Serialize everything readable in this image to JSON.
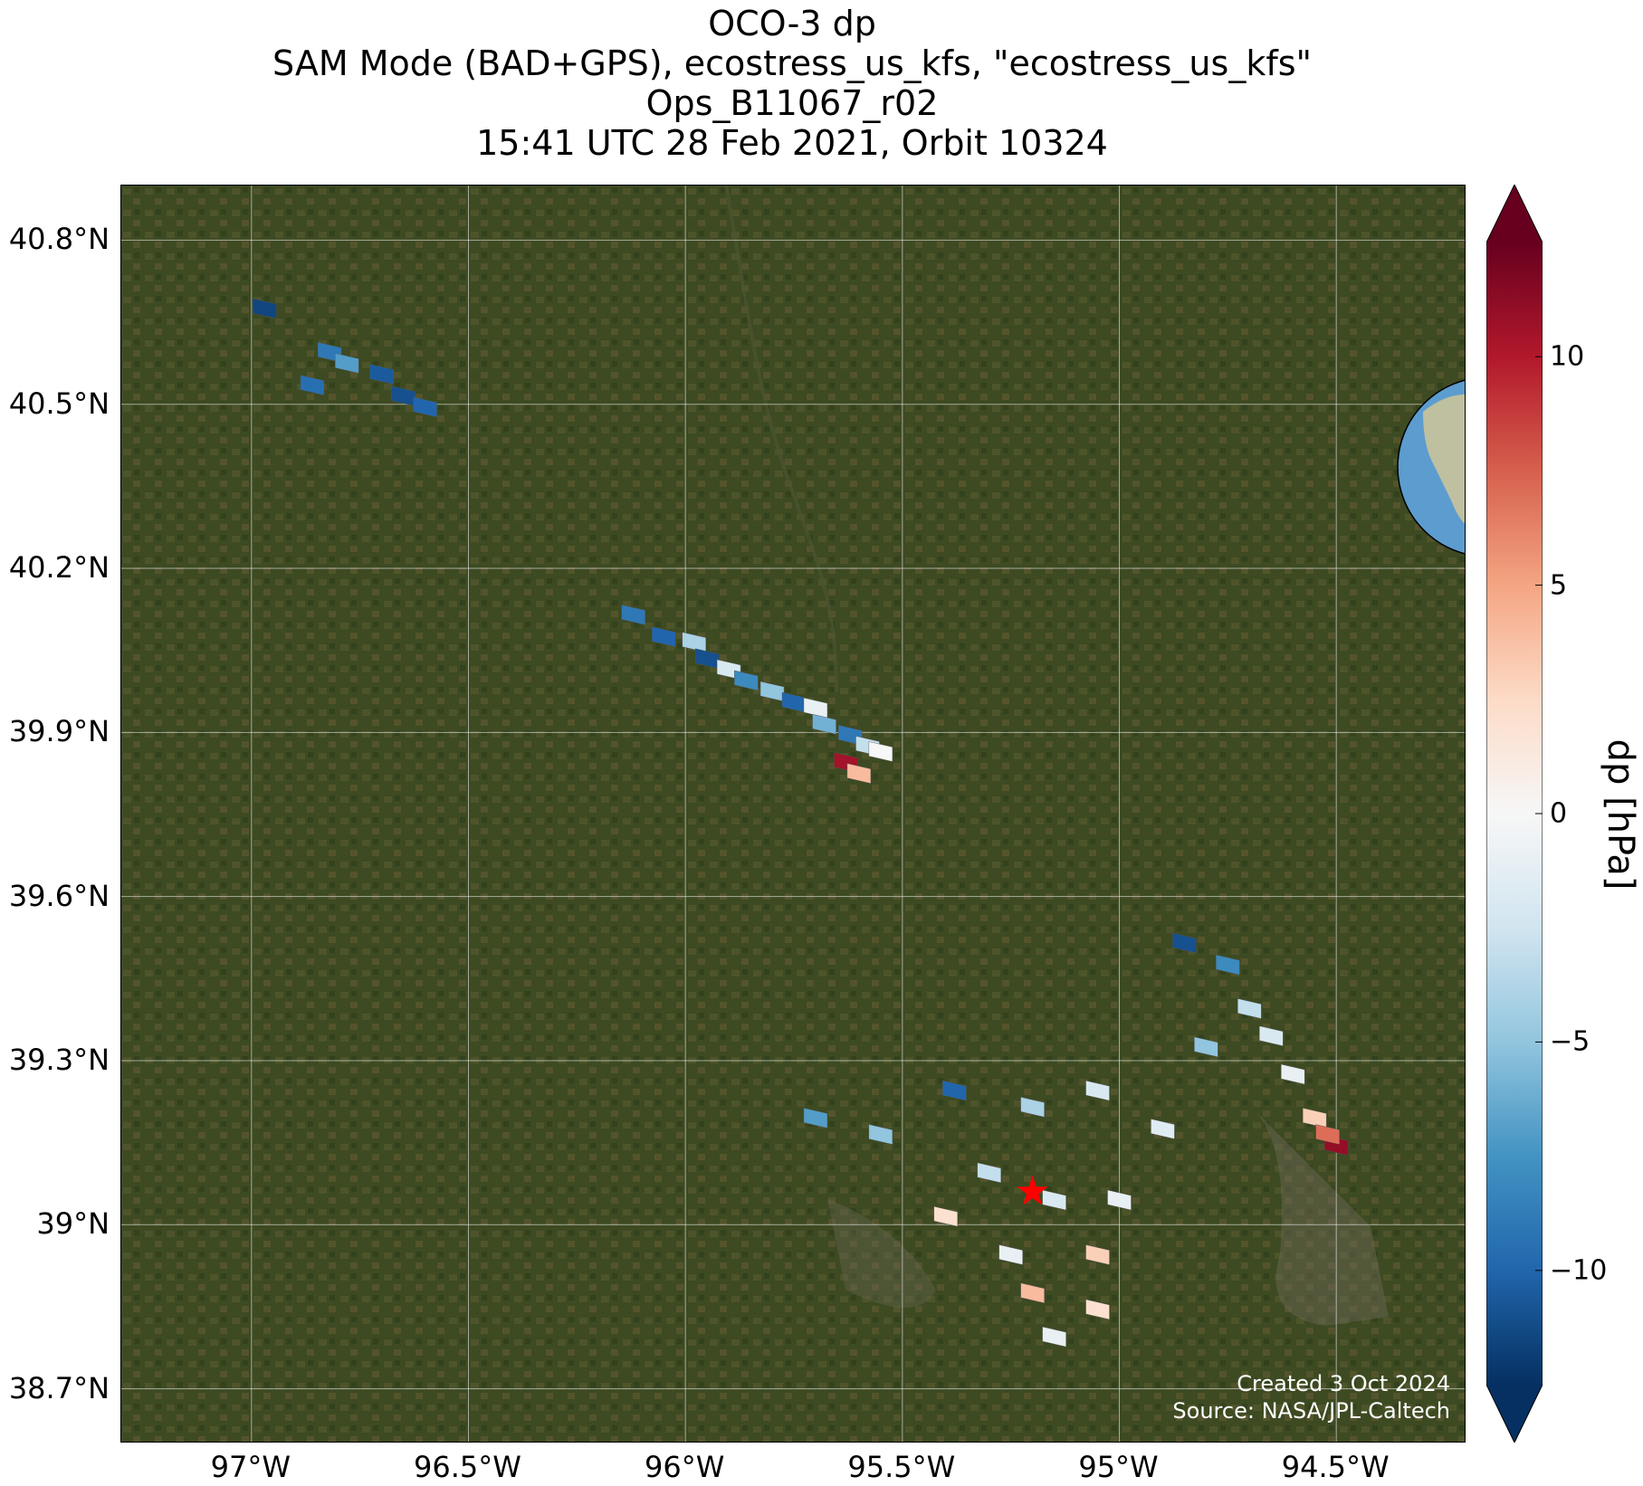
{
  "title": {
    "line1": "OCO-3 dp",
    "line2": "SAM Mode (BAD+GPS), ecostress_us_kfs, \"ecostress_us_kfs\"",
    "line3": "Ops_B11067_r02",
    "line4": "15:41 UTC 28 Feb 2021, Orbit 10324"
  },
  "map": {
    "lon_range": [
      -97.3,
      -94.2
    ],
    "lat_range": [
      38.6,
      40.9
    ],
    "lat_ticks": [
      {
        "value": 40.8,
        "label": "40.8°N"
      },
      {
        "value": 40.5,
        "label": "40.5°N"
      },
      {
        "value": 40.2,
        "label": "40.2°N"
      },
      {
        "value": 39.9,
        "label": "39.9°N"
      },
      {
        "value": 39.6,
        "label": "39.6°N"
      },
      {
        "value": 39.3,
        "label": "39.3°N"
      },
      {
        "value": 39.0,
        "label": "39°N"
      },
      {
        "value": 38.7,
        "label": "38.7°N"
      }
    ],
    "lon_ticks": [
      {
        "value": -97.0,
        "label": "97°W"
      },
      {
        "value": -96.5,
        "label": "96.5°W"
      },
      {
        "value": -96.0,
        "label": "96°W"
      },
      {
        "value": -95.5,
        "label": "95.5°W"
      },
      {
        "value": -95.0,
        "label": "95°W"
      },
      {
        "value": -94.5,
        "label": "94.5°W"
      }
    ],
    "target_marker": {
      "lon": -95.2,
      "lat": 39.06,
      "color": "#ff0000"
    },
    "basemap_color": "#3d4a22",
    "credits": {
      "line1": "Created 3 Oct 2024",
      "line2": "Source: NASA/JPL-Caltech"
    }
  },
  "colorbar": {
    "label": "dp [hPa]",
    "range": [
      -12.5,
      12.5
    ],
    "ticks": [
      {
        "value": 10,
        "label": "10"
      },
      {
        "value": 5,
        "label": "5"
      },
      {
        "value": 0,
        "label": "0"
      },
      {
        "value": -5,
        "label": "−5"
      },
      {
        "value": -10,
        "label": "−10"
      }
    ],
    "colormap": [
      "#053061",
      "#2166ac",
      "#4393c3",
      "#92c5de",
      "#d1e5f0",
      "#f7f7f7",
      "#fddbc7",
      "#f4a582",
      "#d6604d",
      "#b2182b",
      "#67001f"
    ]
  },
  "chart_data": {
    "type": "heatmap",
    "variable": "dp",
    "units": "hPa",
    "swaths": [
      {
        "points": [
          {
            "lon": -96.97,
            "lat": 40.68,
            "dp": -11.5
          },
          {
            "lon": -96.82,
            "lat": 40.6,
            "dp": -9
          },
          {
            "lon": -96.78,
            "lat": 40.58,
            "dp": -7
          },
          {
            "lon": -96.7,
            "lat": 40.56,
            "dp": -10.5
          },
          {
            "lon": -96.86,
            "lat": 40.54,
            "dp": -9.5
          },
          {
            "lon": -96.65,
            "lat": 40.52,
            "dp": -11
          },
          {
            "lon": -96.6,
            "lat": 40.5,
            "dp": -10
          }
        ]
      },
      {
        "points": [
          {
            "lon": -96.12,
            "lat": 40.12,
            "dp": -9
          },
          {
            "lon": -96.05,
            "lat": 40.08,
            "dp": -10
          },
          {
            "lon": -95.98,
            "lat": 40.07,
            "dp": -4
          },
          {
            "lon": -95.95,
            "lat": 40.04,
            "dp": -11
          },
          {
            "lon": -95.9,
            "lat": 40.02,
            "dp": -2
          },
          {
            "lon": -95.86,
            "lat": 40.0,
            "dp": -8
          },
          {
            "lon": -95.8,
            "lat": 39.98,
            "dp": -5
          },
          {
            "lon": -95.75,
            "lat": 39.96,
            "dp": -10
          },
          {
            "lon": -95.7,
            "lat": 39.95,
            "dp": -1
          },
          {
            "lon": -95.68,
            "lat": 39.92,
            "dp": -6
          },
          {
            "lon": -95.62,
            "lat": 39.9,
            "dp": -9
          },
          {
            "lon": -95.58,
            "lat": 39.88,
            "dp": -3
          },
          {
            "lon": -95.55,
            "lat": 39.87,
            "dp": 0
          },
          {
            "lon": -95.63,
            "lat": 39.85,
            "dp": 10.5
          },
          {
            "lon": -95.6,
            "lat": 39.83,
            "dp": 4
          }
        ]
      },
      {
        "points": [
          {
            "lon": -94.85,
            "lat": 39.52,
            "dp": -11
          },
          {
            "lon": -94.75,
            "lat": 39.48,
            "dp": -8
          },
          {
            "lon": -94.7,
            "lat": 39.4,
            "dp": -3
          },
          {
            "lon": -94.65,
            "lat": 39.35,
            "dp": -2
          },
          {
            "lon": -94.8,
            "lat": 39.33,
            "dp": -5
          },
          {
            "lon": -94.6,
            "lat": 39.28,
            "dp": -1
          },
          {
            "lon": -94.55,
            "lat": 39.2,
            "dp": 3
          },
          {
            "lon": -94.5,
            "lat": 39.15,
            "dp": 11
          },
          {
            "lon": -94.52,
            "lat": 39.17,
            "dp": 7
          }
        ]
      },
      {
        "points": [
          {
            "lon": -95.7,
            "lat": 39.2,
            "dp": -7
          },
          {
            "lon": -95.55,
            "lat": 39.17,
            "dp": -5
          },
          {
            "lon": -95.38,
            "lat": 39.25,
            "dp": -10
          },
          {
            "lon": -95.2,
            "lat": 39.22,
            "dp": -4
          },
          {
            "lon": -95.05,
            "lat": 39.25,
            "dp": -2
          },
          {
            "lon": -94.9,
            "lat": 39.18,
            "dp": -1.5
          },
          {
            "lon": -95.3,
            "lat": 39.1,
            "dp": -3
          },
          {
            "lon": -95.15,
            "lat": 39.05,
            "dp": -2
          },
          {
            "lon": -95.0,
            "lat": 39.05,
            "dp": -1
          },
          {
            "lon": -95.4,
            "lat": 39.02,
            "dp": 2
          },
          {
            "lon": -95.25,
            "lat": 38.95,
            "dp": -1
          },
          {
            "lon": -95.05,
            "lat": 38.95,
            "dp": 3
          },
          {
            "lon": -95.2,
            "lat": 38.88,
            "dp": 4
          },
          {
            "lon": -95.05,
            "lat": 38.85,
            "dp": 2
          },
          {
            "lon": -95.15,
            "lat": 38.8,
            "dp": -1
          }
        ]
      }
    ]
  }
}
